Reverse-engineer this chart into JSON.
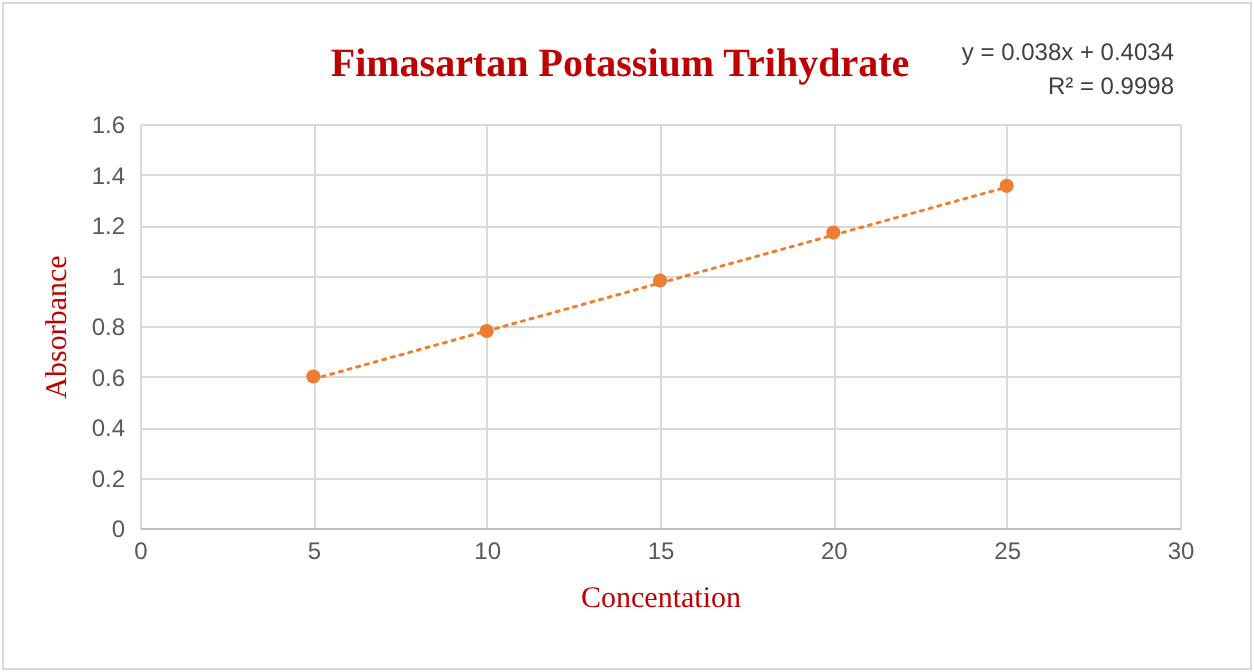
{
  "chart_data": {
    "type": "scatter",
    "title": "Fimasartan Potassium Trihydrate",
    "xlabel": "Concentation",
    "ylabel": "Absorbance",
    "annotations": [
      "y = 0.038x + 0.4034",
      "R² = 0.9998"
    ],
    "x": [
      5,
      10,
      15,
      20,
      25
    ],
    "series": [
      {
        "type": "scatter",
        "color": "#ed7d31",
        "marker": "circle",
        "values": [
          0.6,
          0.78,
          0.98,
          1.17,
          1.355
        ]
      },
      {
        "type": "line",
        "x": [
          5,
          25
        ],
        "color": "#ed7d31",
        "line_style": "dotted",
        "marker": "none",
        "values": [
          0.59,
          1.35
        ]
      }
    ],
    "xlim": [
      0,
      30
    ],
    "xticks": [
      0,
      5,
      10,
      15,
      20,
      25,
      30
    ],
    "ylim": [
      0,
      1.6
    ],
    "yticks": [
      0,
      0.2,
      0.4,
      0.6,
      0.8,
      1,
      1.2,
      1.4,
      1.6
    ],
    "grid": true
  }
}
